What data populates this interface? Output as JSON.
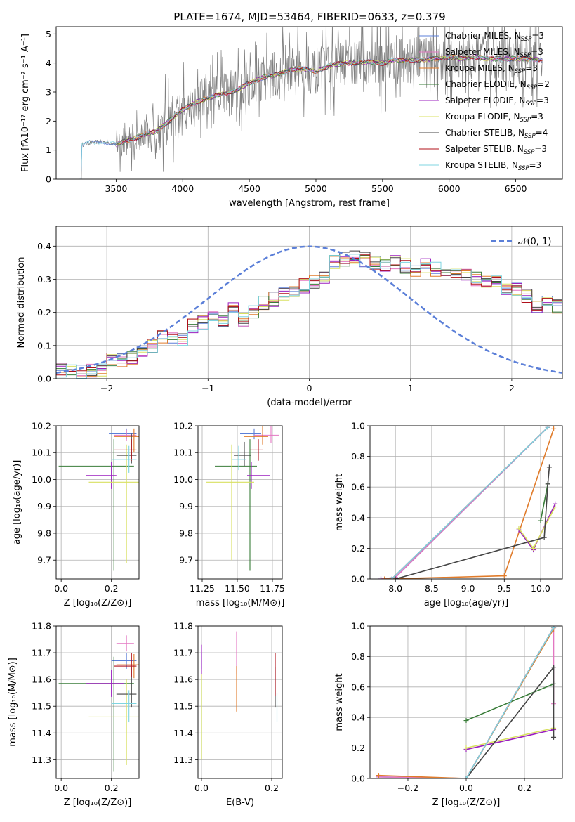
{
  "title": "PLATE=1674, MJD=53464, FIBERID=0633, z=0.379",
  "colors": {
    "Chabrier MILES": "#5b7fd8",
    "Salpeter MILES": "#e377c2",
    "Kroupa MILES": "#e07b2a",
    "Chabrier ELODIE": "#3a7d3a",
    "Salpeter ELODIE": "#9b1fbf",
    "Kroupa ELODIE": "#d8e060",
    "Chabrier STELIB": "#444444",
    "Salpeter STELIB": "#b0101a",
    "Kroupa STELIB": "#7fd4e0",
    "normal": "#5b7fd8",
    "data": "#808080"
  },
  "chart_data": [
    {
      "id": "spectrum",
      "type": "line",
      "xlabel": "wavelength [Angstrom, rest frame]",
      "ylabel": "Flux [fλ10⁻¹⁷ erg cm⁻² s⁻¹ A⁻¹]",
      "xlim": [
        3050,
        6850
      ],
      "ylim": [
        0,
        5.25
      ],
      "xticks": [
        3500,
        4000,
        4500,
        5000,
        5500,
        6000,
        6500
      ],
      "yticks": [
        0,
        1,
        2,
        3,
        4,
        5
      ],
      "legend_position": "top-right",
      "legend": [
        "Chabrier MILES, NSSP=3",
        "Salpeter MILES, NSSP=3",
        "Kroupa MILES, NSSP=3",
        "Chabrier ELODIE, NSSP=2",
        "Salpeter ELODIE, NSSP=3",
        "Kroupa ELODIE, NSSP=3",
        "Chabrier STELIB, NSSP=4",
        "Salpeter STELIB, NSSP=3",
        "Kroupa STELIB, NSSP=3"
      ],
      "legend_main": [
        "Chabrier MILES, N",
        "Salpeter MILES, N",
        "Kroupa MILES, N",
        "Chabrier ELODIE, N",
        "Salpeter ELODIE, N",
        "Kroupa ELODIE, N",
        "Chabrier STELIB, N",
        "Salpeter STELIB, N",
        "Kroupa STELIB, N"
      ],
      "legend_sub": "SSP",
      "legend_count": [
        "=3",
        "=3",
        "=3",
        "=2",
        "=3",
        "=3",
        "=4",
        "=3",
        "=3"
      ],
      "legend_keys": [
        "Chabrier MILES",
        "Salpeter MILES",
        "Kroupa MILES",
        "Chabrier ELODIE",
        "Salpeter ELODIE",
        "Kroupa ELODIE",
        "Chabrier STELIB",
        "Salpeter STELIB",
        "Kroupa STELIB"
      ],
      "model_continuum": {
        "x": [
          3220,
          3300,
          3400,
          3500,
          3600,
          3700,
          3800,
          3900,
          4000,
          4100,
          4200,
          4300,
          4400,
          4500,
          4600,
          4700,
          4800,
          4900,
          5000,
          5100,
          5200,
          5300,
          5400,
          5500,
          5600,
          5700,
          5800,
          5900,
          6000,
          6100,
          6200,
          6300,
          6400,
          6500,
          6600,
          6700
        ],
        "y": [
          1.15,
          1.25,
          1.3,
          1.2,
          1.35,
          1.5,
          1.65,
          2.0,
          2.4,
          2.65,
          2.8,
          2.95,
          3.05,
          3.3,
          3.5,
          3.6,
          3.75,
          3.8,
          3.7,
          3.9,
          4.0,
          4.0,
          4.05,
          4.0,
          4.1,
          4.1,
          4.1,
          4.15,
          4.2,
          4.15,
          4.2,
          4.15,
          4.15,
          4.15,
          4.15,
          4.1
        ]
      },
      "data_noise_start": 3500
    },
    {
      "id": "residuals",
      "type": "histogram",
      "xlabel": "(data-model)/error",
      "ylabel": "Normed distribution",
      "xlim": [
        -2.5,
        2.5
      ],
      "ylim": [
        0,
        0.46
      ],
      "xticks": [
        -2,
        -1,
        0,
        1,
        2
      ],
      "xtick_labels": [
        "−2",
        "−1",
        "0",
        "1",
        "2"
      ],
      "yticks": [
        0.0,
        0.1,
        0.2,
        0.3,
        0.4
      ],
      "legend": [
        "N(0,1)"
      ],
      "legend_position": "top-right",
      "bin_width": 0.1,
      "base_profile": [
        0.025,
        0.02,
        0.02,
        0.025,
        0.03,
        0.055,
        0.055,
        0.06,
        0.085,
        0.1,
        0.13,
        0.12,
        0.12,
        0.16,
        0.17,
        0.19,
        0.175,
        0.21,
        0.18,
        0.2,
        0.23,
        0.24,
        0.255,
        0.27,
        0.28,
        0.29,
        0.31,
        0.35,
        0.36,
        0.37,
        0.36,
        0.35,
        0.34,
        0.35,
        0.34,
        0.33,
        0.34,
        0.33,
        0.33,
        0.32,
        0.31,
        0.3,
        0.29,
        0.3,
        0.27,
        0.27,
        0.25,
        0.22,
        0.24,
        0.22,
        0.2,
        0.21,
        0.19,
        0.2,
        0.17,
        0.17,
        0.15,
        0.13,
        0.12,
        0.12,
        0.11,
        0.1,
        0.09,
        0.09,
        0.08,
        0.085,
        0.07,
        0.06,
        0.05,
        0.05
      ]
    },
    {
      "id": "age-vs-Z",
      "type": "errorbar",
      "xlabel": "Z [log₁₀(Z/Z⊙)]",
      "ylabel": "age  [log₁₀(age/yr)]",
      "xlim": [
        -0.02,
        0.31
      ],
      "ylim": [
        9.63,
        10.2
      ],
      "xticks": [
        0.0,
        0.2
      ],
      "yticks": [
        9.7,
        9.8,
        9.9,
        10.0,
        10.1,
        10.2
      ],
      "points": [
        {
          "model": "Chabrier MILES",
          "x": 0.26,
          "y": 10.17,
          "xerr": [
            0.07,
            0.04
          ],
          "yerr": [
            0.02,
            0.02
          ]
        },
        {
          "model": "Salpeter MILES",
          "x": 0.26,
          "y": 10.165,
          "xerr": [
            0.05,
            0.04
          ],
          "yerr": [
            0.02,
            0.02
          ]
        },
        {
          "model": "Kroupa MILES",
          "x": 0.29,
          "y": 10.16,
          "xerr": [
            0.08,
            0.02
          ],
          "yerr": [
            0.06,
            0.03
          ]
        },
        {
          "model": "Chabrier ELODIE",
          "x": 0.21,
          "y": 10.05,
          "xerr": [
            0.22,
            0.08
          ],
          "yerr": [
            0.39,
            0.1
          ]
        },
        {
          "model": "Salpeter ELODIE",
          "x": 0.2,
          "y": 10.015,
          "xerr": [
            0.1,
            0.02
          ],
          "yerr": [
            0.05,
            0.05
          ]
        },
        {
          "model": "Kroupa ELODIE",
          "x": 0.26,
          "y": 9.99,
          "xerr": [
            0.15,
            0.05
          ],
          "yerr": [
            0.3,
            0.14
          ]
        },
        {
          "model": "Chabrier STELIB",
          "x": 0.28,
          "y": 10.09,
          "xerr": [
            0.06,
            0.02
          ],
          "yerr": [
            0.03,
            0.08
          ]
        },
        {
          "model": "Salpeter STELIB",
          "x": 0.28,
          "y": 10.11,
          "xerr": [
            0.07,
            0.02
          ],
          "yerr": [
            0.04,
            0.04
          ]
        },
        {
          "model": "Kroupa STELIB",
          "x": 0.27,
          "y": 10.075,
          "xerr": [
            0.07,
            0.03
          ],
          "yerr": [
            0.05,
            0.05
          ]
        }
      ]
    },
    {
      "id": "age-vs-mass",
      "type": "errorbar",
      "xlabel": "mass [log₁₀(M/M⊙)]",
      "ylabel": "",
      "xlim": [
        11.22,
        11.82
      ],
      "ylim": [
        9.63,
        10.2
      ],
      "xticks": [
        11.25,
        11.5,
        11.75
      ],
      "yticks": [
        9.7,
        9.8,
        9.9,
        10.0,
        10.1,
        10.2
      ],
      "points": [
        {
          "model": "Chabrier MILES",
          "x": 11.62,
          "y": 10.17,
          "xerr": [
            0.1,
            0.05
          ],
          "yerr": [
            0.02,
            0.02
          ]
        },
        {
          "model": "Salpeter MILES",
          "x": 11.74,
          "y": 10.165,
          "xerr": [
            0.12,
            0.06
          ],
          "yerr": [
            0.03,
            0.08
          ]
        },
        {
          "model": "Kroupa MILES",
          "x": 11.68,
          "y": 10.16,
          "xerr": [
            0.13,
            0.04
          ],
          "yerr": [
            0.03,
            0.06
          ]
        },
        {
          "model": "Chabrier ELODIE",
          "x": 11.59,
          "y": 10.05,
          "xerr": [
            0.25,
            0.05
          ],
          "yerr": [
            0.39,
            0.1
          ]
        },
        {
          "model": "Salpeter ELODIE",
          "x": 11.6,
          "y": 10.015,
          "xerr": [
            0.03,
            0.13
          ],
          "yerr": [
            0.05,
            0.05
          ]
        },
        {
          "model": "Kroupa ELODIE",
          "x": 11.46,
          "y": 9.99,
          "xerr": [
            0.18,
            0.16
          ],
          "yerr": [
            0.29,
            0.14
          ]
        },
        {
          "model": "Chabrier STELIB",
          "x": 11.55,
          "y": 10.09,
          "xerr": [
            0.07,
            0.05
          ],
          "yerr": [
            0.04,
            0.05
          ]
        },
        {
          "model": "Salpeter STELIB",
          "x": 11.65,
          "y": 10.11,
          "xerr": [
            0.06,
            0.03
          ],
          "yerr": [
            0.04,
            0.04
          ]
        },
        {
          "model": "Kroupa STELIB",
          "x": 11.51,
          "y": 10.075,
          "xerr": [
            0.05,
            0.05
          ],
          "yerr": [
            0.04,
            0.05
          ]
        }
      ]
    },
    {
      "id": "massweight-vs-age",
      "type": "line",
      "xlabel": "age  [log₁₀(age/yr)]",
      "ylabel": "mass weight",
      "xlim": [
        7.65,
        10.3
      ],
      "ylim": [
        0,
        1.0
      ],
      "xticks": [
        8.0,
        8.5,
        9.0,
        9.5,
        10.0
      ],
      "yticks": [
        0.0,
        0.2,
        0.4,
        0.6,
        0.8,
        1.0
      ],
      "series": [
        {
          "model": "Chabrier MILES",
          "x": [
            7.8,
            8.0,
            10.1
          ],
          "y": [
            0.0,
            0.01,
            0.99
          ]
        },
        {
          "model": "Salpeter MILES",
          "x": [
            7.8,
            8.0,
            10.1
          ],
          "y": [
            0.0,
            0.01,
            0.99
          ]
        },
        {
          "model": "Kroupa MILES",
          "x": [
            7.85,
            9.5,
            10.18
          ],
          "y": [
            0.0,
            0.02,
            0.98
          ]
        },
        {
          "model": "Chabrier ELODIE",
          "x": [
            10.0,
            10.1
          ],
          "y": [
            0.38,
            0.62
          ]
        },
        {
          "model": "Salpeter ELODIE",
          "x": [
            9.7,
            9.9,
            10.2
          ],
          "y": [
            0.32,
            0.19,
            0.49
          ]
        },
        {
          "model": "Kroupa ELODIE",
          "x": [
            9.7,
            9.9,
            10.2
          ],
          "y": [
            0.33,
            0.2,
            0.47
          ]
        },
        {
          "model": "Chabrier STELIB",
          "x": [
            8.0,
            10.05,
            10.1,
            10.12
          ],
          "y": [
            0.0,
            0.27,
            0.62,
            0.73
          ]
        },
        {
          "model": "Salpeter STELIB",
          "x": [
            7.95,
            10.1
          ],
          "y": [
            0.0,
            0.99
          ]
        },
        {
          "model": "Kroupa STELIB",
          "x": [
            7.95,
            10.1
          ],
          "y": [
            0.0,
            0.99
          ]
        }
      ]
    },
    {
      "id": "mass-vs-Z",
      "type": "errorbar",
      "xlabel": "Z [log₁₀(Z/Z⊙)]",
      "ylabel": "mass [log₁₀(M/M⊙)]",
      "xlim": [
        -0.02,
        0.31
      ],
      "ylim": [
        11.23,
        11.8
      ],
      "xticks": [
        0.0,
        0.2
      ],
      "yticks": [
        11.3,
        11.4,
        11.5,
        11.6,
        11.7,
        11.8
      ],
      "points": [
        {
          "model": "Chabrier MILES",
          "x": 0.26,
          "y": 11.67,
          "xerr": [
            0.06,
            0.04
          ],
          "yerr": [
            0.03,
            0.03
          ]
        },
        {
          "model": "Salpeter MILES",
          "x": 0.26,
          "y": 11.735,
          "xerr": [
            0.04,
            0.03
          ],
          "yerr": [
            0.03,
            0.03
          ]
        },
        {
          "model": "Kroupa MILES",
          "x": 0.29,
          "y": 11.655,
          "xerr": [
            0.07,
            0.02
          ],
          "yerr": [
            0.05,
            0.04
          ]
        },
        {
          "model": "Chabrier ELODIE",
          "x": 0.21,
          "y": 11.585,
          "xerr": [
            0.22,
            0.08
          ],
          "yerr": [
            0.33,
            0.1
          ]
        },
        {
          "model": "Salpeter ELODIE",
          "x": 0.2,
          "y": 11.585,
          "xerr": [
            0.1,
            0.05
          ],
          "yerr": [
            0.05,
            0.05
          ]
        },
        {
          "model": "Kroupa ELODIE",
          "x": 0.26,
          "y": 11.46,
          "xerr": [
            0.15,
            0.05
          ],
          "yerr": [
            0.18,
            0.14
          ]
        },
        {
          "model": "Chabrier STELIB",
          "x": 0.28,
          "y": 11.545,
          "xerr": [
            0.06,
            0.02
          ],
          "yerr": [
            0.05,
            0.1
          ]
        },
        {
          "model": "Salpeter STELIB",
          "x": 0.28,
          "y": 11.65,
          "xerr": [
            0.07,
            0.02
          ],
          "yerr": [
            0.04,
            0.05
          ]
        },
        {
          "model": "Kroupa STELIB",
          "x": 0.27,
          "y": 11.51,
          "xerr": [
            0.07,
            0.03
          ],
          "yerr": [
            0.07,
            0.05
          ]
        }
      ]
    },
    {
      "id": "mass-vs-EBV",
      "type": "errorbar",
      "xlabel": "E(B-V)",
      "ylabel": "",
      "xlim": [
        -0.01,
        0.23
      ],
      "ylim": [
        11.23,
        11.8
      ],
      "xticks": [
        0.0,
        0.2
      ],
      "yticks": [
        11.3,
        11.4,
        11.5,
        11.6,
        11.7,
        11.8
      ],
      "points": [
        {
          "model": "Chabrier MILES",
          "x": 0.0,
          "y": 11.67,
          "xerr": [
            0,
            0
          ],
          "yerr": [
            0.03,
            0.03
          ]
        },
        {
          "model": "Salpeter MILES",
          "x": 0.1,
          "y": 11.68,
          "xerr": [
            0,
            0
          ],
          "yerr": [
            0.06,
            0.1
          ]
        },
        {
          "model": "Kroupa MILES",
          "x": 0.1,
          "y": 11.58,
          "xerr": [
            0,
            0
          ],
          "yerr": [
            0.1,
            0.07
          ]
        },
        {
          "model": "Chabrier ELODIE",
          "x": 0.0,
          "y": 11.45,
          "xerr": [
            0,
            0
          ],
          "yerr": [
            0.15,
            0.15
          ]
        },
        {
          "model": "Salpeter ELODIE",
          "x": 0.0,
          "y": 11.66,
          "xerr": [
            0,
            0
          ],
          "yerr": [
            0.06,
            0.07
          ]
        },
        {
          "model": "Kroupa ELODIE",
          "x": 0.0,
          "y": 11.42,
          "xerr": [
            0,
            0
          ],
          "yerr": [
            0.12,
            0.2
          ]
        },
        {
          "model": "Chabrier STELIB",
          "x": 0.21,
          "y": 11.545,
          "xerr": [
            0,
            0
          ],
          "yerr": [
            0.05,
            0.1
          ]
        },
        {
          "model": "Salpeter STELIB",
          "x": 0.21,
          "y": 11.62,
          "xerr": [
            0,
            0
          ],
          "yerr": [
            0.08,
            0.08
          ]
        },
        {
          "model": "Kroupa STELIB",
          "x": 0.215,
          "y": 11.5,
          "xerr": [
            0,
            0
          ],
          "yerr": [
            0.06,
            0.05
          ]
        }
      ]
    },
    {
      "id": "massweight-vs-Z",
      "type": "line",
      "xlabel": "Z [log₁₀(Z/Z⊙)]",
      "ylabel": "mass weight",
      "xlim": [
        -0.33,
        0.33
      ],
      "ylim": [
        0,
        1.0
      ],
      "xticks": [
        -0.2,
        0.0,
        0.2
      ],
      "xtick_labels": [
        "−0.2",
        "0.0",
        "0.2"
      ],
      "yticks": [
        0.0,
        0.2,
        0.4,
        0.6,
        0.8,
        1.0
      ],
      "series": [
        {
          "model": "Chabrier MILES",
          "x": [
            -0.3,
            0.0,
            0.3
          ],
          "y": [
            0.01,
            0.0,
            0.99
          ]
        },
        {
          "model": "Salpeter MILES",
          "x": [
            -0.3,
            0.0,
            0.3,
            0.3
          ],
          "y": [
            0.01,
            0.0,
            0.99,
            0.49
          ]
        },
        {
          "model": "Kroupa MILES",
          "x": [
            -0.3,
            0.0,
            0.3
          ],
          "y": [
            0.02,
            0.0,
            0.98
          ]
        },
        {
          "model": "Chabrier ELODIE",
          "x": [
            0.0,
            0.3
          ],
          "y": [
            0.38,
            0.62
          ]
        },
        {
          "model": "Salpeter ELODIE",
          "x": [
            0.0,
            0.3
          ],
          "y": [
            0.19,
            0.32
          ]
        },
        {
          "model": "Kroupa ELODIE",
          "x": [
            0.0,
            0.3
          ],
          "y": [
            0.2,
            0.33
          ]
        },
        {
          "model": "Chabrier STELIB",
          "x": [
            0.0,
            0.3,
            0.3,
            0.3
          ],
          "y": [
            0.0,
            0.73,
            0.62,
            0.27
          ]
        },
        {
          "model": "Salpeter STELIB",
          "x": [
            0.0,
            0.3
          ],
          "y": [
            0.0,
            0.99
          ]
        },
        {
          "model": "Kroupa STELIB",
          "x": [
            0.0,
            0.3
          ],
          "y": [
            0.0,
            0.99
          ]
        }
      ]
    }
  ]
}
